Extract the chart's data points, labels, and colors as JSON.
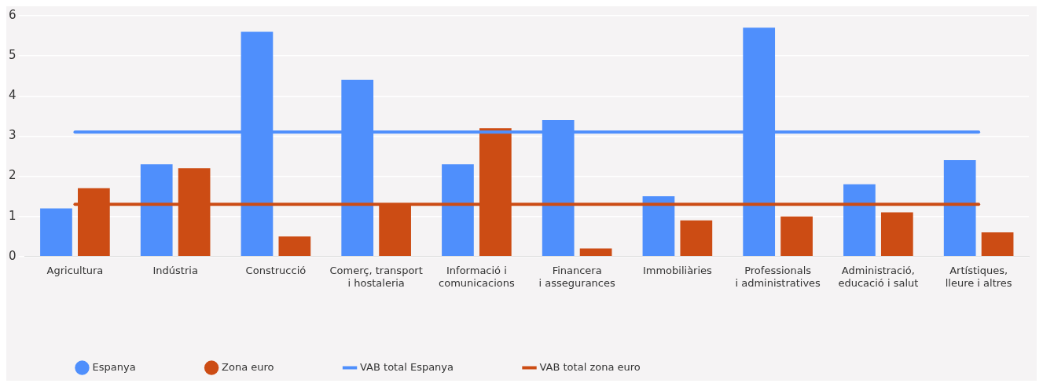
{
  "chart_data": {
    "type": "bar",
    "categories": [
      "Agricultura",
      "Indústria",
      "Construcció",
      "Comerç, transport\ni hostaleria",
      "Informació i\ncomunicacions",
      "Financera\ni assegurances",
      "Immobiliàries",
      "Professionals\ni administratives",
      "Administració,\neducació i salut",
      "Artístiques,\nlleure i altres"
    ],
    "series": [
      {
        "name": "Espanya",
        "color": "#4f8ffc",
        "values": [
          1.2,
          2.3,
          5.6,
          4.4,
          2.3,
          3.4,
          1.5,
          5.7,
          1.8,
          2.4
        ]
      },
      {
        "name": "Zona euro",
        "color": "#cc4c14",
        "values": [
          1.7,
          2.2,
          0.5,
          1.3,
          3.2,
          0.2,
          0.9,
          1.0,
          1.1,
          0.6
        ]
      },
      {
        "name": "VAB total Espanya",
        "type": "line",
        "color": "#4f8ffc",
        "values": [
          3.1,
          3.1,
          3.1,
          3.1,
          3.1,
          3.1,
          3.1,
          3.1,
          3.1,
          3.1
        ]
      },
      {
        "name": "VAB total zona euro",
        "type": "line",
        "color": "#cc4c14",
        "values": [
          1.3,
          1.3,
          1.3,
          1.3,
          1.3,
          1.3,
          1.3,
          1.3,
          1.3,
          1.3
        ]
      }
    ],
    "ylim": [
      0,
      6
    ],
    "yticks": [
      0,
      1,
      2,
      3,
      4,
      5,
      6
    ],
    "grid": "y",
    "legend": "bottom left",
    "marker": "none"
  }
}
